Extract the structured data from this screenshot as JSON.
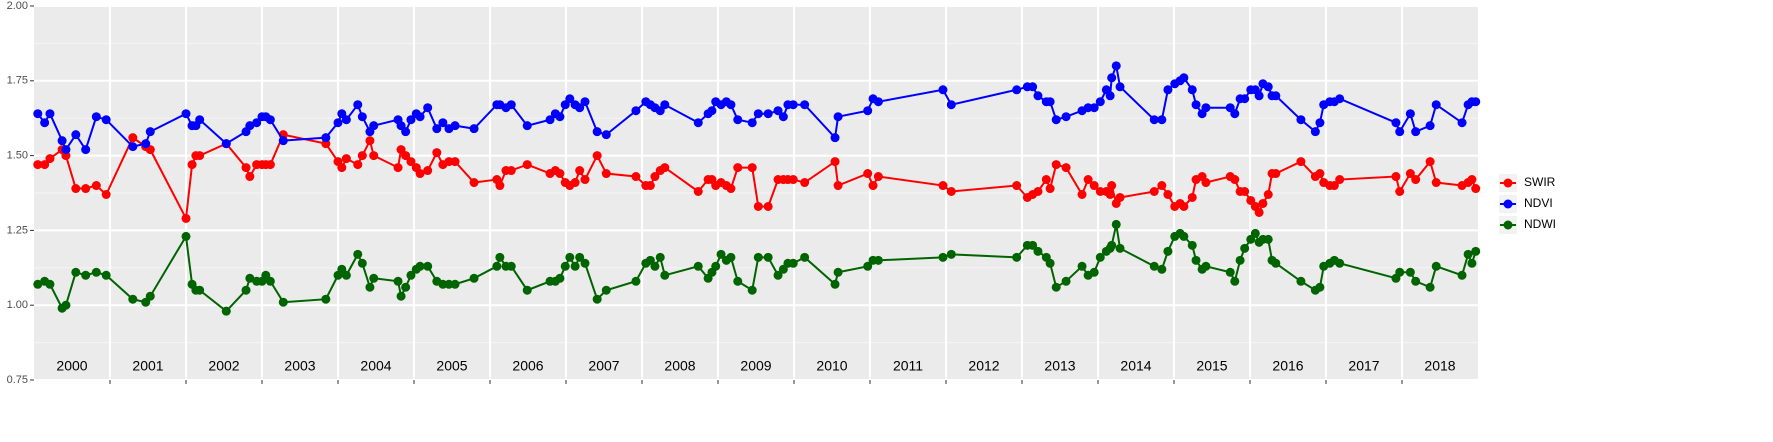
{
  "chart_data": {
    "type": "line",
    "x": [
      2000.05,
      2000.14,
      2000.21,
      2000.37,
      2000.42,
      2000.55,
      2000.68,
      2000.82,
      2000.95,
      2001.3,
      2001.47,
      2001.53,
      2002.0,
      2002.08,
      2002.13,
      2002.18,
      2002.53,
      2002.79,
      2002.84,
      2002.93,
      2003.0,
      2003.05,
      2003.11,
      2003.28,
      2003.84,
      2004.0,
      2004.05,
      2004.11,
      2004.26,
      2004.32,
      2004.42,
      2004.47,
      2004.79,
      2004.83,
      2004.89,
      2004.96,
      2005.03,
      2005.08,
      2005.18,
      2005.3,
      2005.38,
      2005.46,
      2005.54,
      2005.79,
      2006.09,
      2006.13,
      2006.21,
      2006.28,
      2006.49,
      2006.79,
      2006.86,
      2006.92,
      2006.99,
      2007.05,
      2007.12,
      2007.18,
      2007.25,
      2007.41,
      2007.53,
      2007.92,
      2008.05,
      2008.11,
      2008.17,
      2008.24,
      2008.3,
      2008.74,
      2008.87,
      2008.92,
      2008.97,
      2009.04,
      2009.11,
      2009.17,
      2009.26,
      2009.45,
      2009.53,
      2009.66,
      2009.79,
      2009.86,
      2009.92,
      2009.99,
      2010.14,
      2010.54,
      2010.58,
      2010.97,
      2011.04,
      2011.11,
      2011.96,
      2012.07,
      2012.93,
      2013.07,
      2013.14,
      2013.21,
      2013.32,
      2013.37,
      2013.45,
      2013.58,
      2013.79,
      2013.87,
      2013.95,
      2014.03,
      2014.11,
      2014.16,
      2014.18,
      2014.24,
      2014.29,
      2014.74,
      2014.84,
      2014.92,
      2015.01,
      2015.08,
      2015.13,
      2015.24,
      2015.29,
      2015.37,
      2015.42,
      2015.74,
      2015.8,
      2015.87,
      2015.93,
      2016.01,
      2016.07,
      2016.12,
      2016.17,
      2016.24,
      2016.29,
      2016.34,
      2016.67,
      2016.86,
      2016.92,
      2016.97,
      2017.05,
      2017.11,
      2017.18,
      2017.92,
      2017.97,
      2018.11,
      2018.18,
      2018.37,
      2018.45,
      2018.79,
      2018.87,
      2018.92,
      2018.97
    ],
    "series": [
      {
        "name": "SWIR",
        "color": "#ff0000",
        "values": [
          1.47,
          1.47,
          1.49,
          1.52,
          1.5,
          1.39,
          1.39,
          1.4,
          1.37,
          1.56,
          1.53,
          1.52,
          1.29,
          1.47,
          1.5,
          1.5,
          1.54,
          1.46,
          1.43,
          1.47,
          1.47,
          1.47,
          1.47,
          1.57,
          1.54,
          1.48,
          1.46,
          1.49,
          1.47,
          1.5,
          1.55,
          1.5,
          1.46,
          1.52,
          1.5,
          1.48,
          1.46,
          1.44,
          1.45,
          1.51,
          1.47,
          1.48,
          1.48,
          1.41,
          1.42,
          1.4,
          1.45,
          1.45,
          1.47,
          1.44,
          1.45,
          1.44,
          1.41,
          1.4,
          1.41,
          1.45,
          1.42,
          1.5,
          1.44,
          1.43,
          1.4,
          1.4,
          1.43,
          1.45,
          1.46,
          1.38,
          1.42,
          1.42,
          1.4,
          1.41,
          1.4,
          1.39,
          1.46,
          1.46,
          1.33,
          1.33,
          1.42,
          1.42,
          1.42,
          1.42,
          1.41,
          1.48,
          1.4,
          1.44,
          1.4,
          1.43,
          1.4,
          1.38,
          1.4,
          1.36,
          1.37,
          1.38,
          1.42,
          1.39,
          1.47,
          1.46,
          1.37,
          1.42,
          1.4,
          1.38,
          1.38,
          1.37,
          1.4,
          1.34,
          1.36,
          1.38,
          1.4,
          1.37,
          1.33,
          1.34,
          1.33,
          1.36,
          1.42,
          1.43,
          1.41,
          1.43,
          1.42,
          1.38,
          1.38,
          1.35,
          1.33,
          1.31,
          1.34,
          1.37,
          1.44,
          1.44,
          1.48,
          1.43,
          1.44,
          1.41,
          1.4,
          1.4,
          1.42,
          1.43,
          1.38,
          1.44,
          1.42,
          1.48,
          1.41,
          1.4,
          1.41,
          1.42,
          1.39
        ]
      },
      {
        "name": "NDVI",
        "color": "#0000ff",
        "values": [
          1.64,
          1.61,
          1.64,
          1.55,
          1.52,
          1.57,
          1.52,
          1.63,
          1.62,
          1.53,
          1.54,
          1.58,
          1.64,
          1.6,
          1.6,
          1.62,
          1.54,
          1.58,
          1.6,
          1.61,
          1.63,
          1.63,
          1.62,
          1.55,
          1.56,
          1.61,
          1.64,
          1.62,
          1.67,
          1.63,
          1.58,
          1.6,
          1.62,
          1.6,
          1.58,
          1.62,
          1.64,
          1.63,
          1.66,
          1.59,
          1.61,
          1.59,
          1.6,
          1.59,
          1.67,
          1.67,
          1.66,
          1.67,
          1.6,
          1.62,
          1.64,
          1.63,
          1.67,
          1.69,
          1.67,
          1.66,
          1.68,
          1.58,
          1.57,
          1.65,
          1.68,
          1.67,
          1.66,
          1.65,
          1.67,
          1.61,
          1.64,
          1.65,
          1.68,
          1.67,
          1.68,
          1.67,
          1.62,
          1.61,
          1.64,
          1.64,
          1.65,
          1.63,
          1.67,
          1.67,
          1.67,
          1.56,
          1.63,
          1.65,
          1.69,
          1.68,
          1.72,
          1.67,
          1.72,
          1.73,
          1.73,
          1.7,
          1.68,
          1.68,
          1.62,
          1.63,
          1.65,
          1.66,
          1.66,
          1.68,
          1.72,
          1.7,
          1.76,
          1.8,
          1.73,
          1.62,
          1.62,
          1.72,
          1.74,
          1.75,
          1.76,
          1.72,
          1.67,
          1.64,
          1.66,
          1.66,
          1.64,
          1.69,
          1.69,
          1.72,
          1.72,
          1.7,
          1.74,
          1.73,
          1.7,
          1.7,
          1.62,
          1.58,
          1.61,
          1.67,
          1.68,
          1.68,
          1.69,
          1.61,
          1.58,
          1.64,
          1.58,
          1.6,
          1.67,
          1.61,
          1.67,
          1.68,
          1.68
        ]
      },
      {
        "name": "NDWI",
        "color": "#006400",
        "values": [
          1.07,
          1.08,
          1.07,
          0.99,
          1.0,
          1.11,
          1.1,
          1.11,
          1.1,
          1.02,
          1.01,
          1.03,
          1.23,
          1.07,
          1.05,
          1.05,
          0.98,
          1.05,
          1.09,
          1.08,
          1.08,
          1.1,
          1.08,
          1.01,
          1.02,
          1.1,
          1.12,
          1.1,
          1.17,
          1.14,
          1.06,
          1.09,
          1.08,
          1.03,
          1.06,
          1.1,
          1.12,
          1.13,
          1.13,
          1.08,
          1.07,
          1.07,
          1.07,
          1.09,
          1.13,
          1.16,
          1.13,
          1.13,
          1.05,
          1.08,
          1.08,
          1.09,
          1.13,
          1.16,
          1.13,
          1.16,
          1.14,
          1.02,
          1.05,
          1.08,
          1.14,
          1.15,
          1.13,
          1.16,
          1.1,
          1.13,
          1.09,
          1.11,
          1.13,
          1.17,
          1.15,
          1.16,
          1.08,
          1.05,
          1.16,
          1.16,
          1.1,
          1.12,
          1.14,
          1.14,
          1.16,
          1.07,
          1.11,
          1.13,
          1.15,
          1.15,
          1.16,
          1.17,
          1.16,
          1.2,
          1.2,
          1.18,
          1.16,
          1.14,
          1.06,
          1.08,
          1.13,
          1.1,
          1.11,
          1.16,
          1.18,
          1.19,
          1.2,
          1.27,
          1.19,
          1.13,
          1.12,
          1.18,
          1.23,
          1.24,
          1.23,
          1.2,
          1.15,
          1.12,
          1.13,
          1.11,
          1.08,
          1.15,
          1.19,
          1.22,
          1.24,
          1.21,
          1.22,
          1.22,
          1.15,
          1.14,
          1.08,
          1.05,
          1.06,
          1.13,
          1.14,
          1.15,
          1.14,
          1.09,
          1.11,
          1.11,
          1.08,
          1.06,
          1.13,
          1.1,
          1.17,
          1.14,
          1.18
        ]
      }
    ],
    "xlim": [
      2000,
      2019
    ],
    "x_gridlines": [
      2001,
      2002,
      2003,
      2004,
      2005,
      2006,
      2007,
      2008,
      2009,
      2010,
      2011,
      2012,
      2013,
      2014,
      2015,
      2016,
      2017,
      2018
    ],
    "year_labels": [
      {
        "value": 2000.5,
        "label": "2000"
      },
      {
        "value": 2001.5,
        "label": "2001"
      },
      {
        "value": 2002.5,
        "label": "2002"
      },
      {
        "value": 2003.5,
        "label": "2003"
      },
      {
        "value": 2004.5,
        "label": "2004"
      },
      {
        "value": 2005.5,
        "label": "2005"
      },
      {
        "value": 2006.5,
        "label": "2006"
      },
      {
        "value": 2007.5,
        "label": "2007"
      },
      {
        "value": 2008.5,
        "label": "2008"
      },
      {
        "value": 2009.5,
        "label": "2009"
      },
      {
        "value": 2010.5,
        "label": "2010"
      },
      {
        "value": 2011.5,
        "label": "2011"
      },
      {
        "value": 2012.5,
        "label": "2012"
      },
      {
        "value": 2013.5,
        "label": "2013"
      },
      {
        "value": 2014.5,
        "label": "2014"
      },
      {
        "value": 2015.5,
        "label": "2015"
      },
      {
        "value": 2016.5,
        "label": "2016"
      },
      {
        "value": 2017.5,
        "label": "2017"
      },
      {
        "value": 2018.5,
        "label": "2018"
      }
    ],
    "ylim": [
      0.75,
      2.0
    ],
    "yticks": [
      0.75,
      {
        "value": 1.0,
        "label": "1.00"
      },
      1.25,
      {
        "value": 1.5,
        "label": "1.50"
      },
      1.75,
      {
        "value": 2.0,
        "label": "2.00"
      }
    ],
    "y_minor_grid": [
      0.875,
      1.125,
      1.375,
      1.625,
      1.875
    ],
    "grid": true,
    "legend": "right"
  }
}
